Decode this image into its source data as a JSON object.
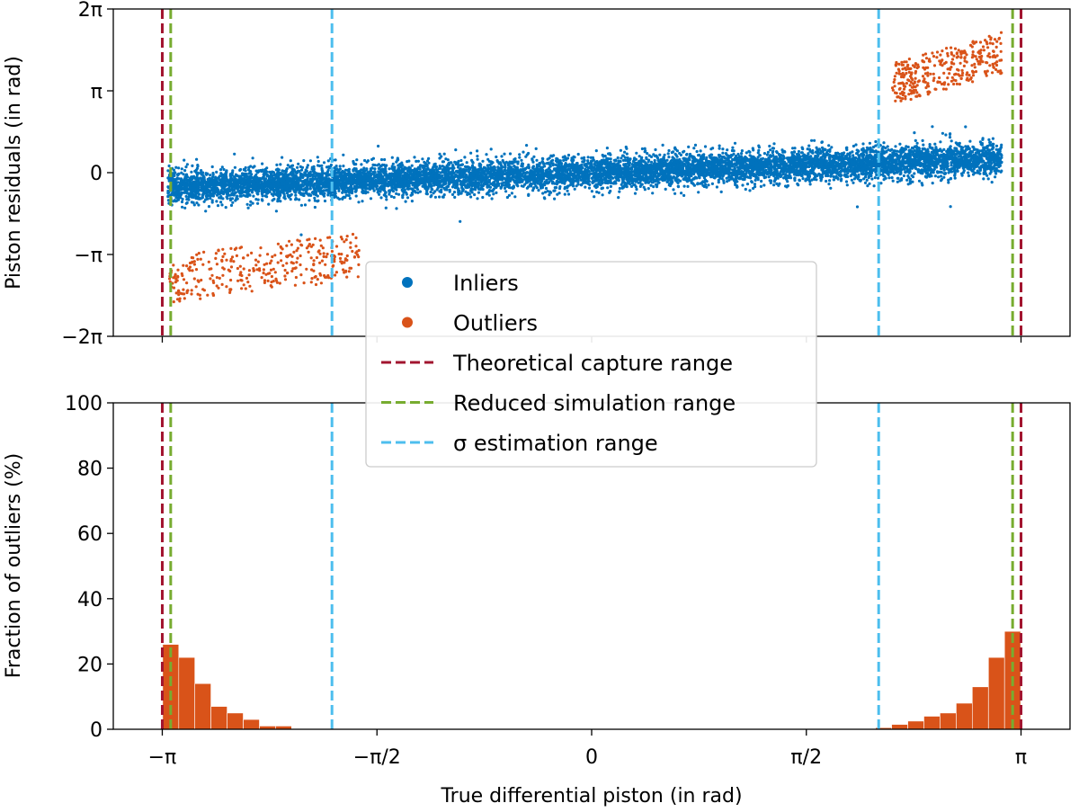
{
  "colors": {
    "inliers": "#0072bd",
    "outliers": "#d95319",
    "theoretical": "#a2142f",
    "reduced": "#77ac30",
    "sigma": "#4dbeee"
  },
  "chart_data": [
    {
      "type": "scatter",
      "ylabel": "Piston residuals (in rad)",
      "xlim": [
        -3.5,
        3.5
      ],
      "ylim": [
        -6.2832,
        6.2832
      ],
      "yticks": [
        {
          "value": 6.2832,
          "label": "2π"
        },
        {
          "value": 3.1416,
          "label": "π"
        },
        {
          "value": 0,
          "label": "0"
        },
        {
          "value": -3.1416,
          "label": "−π"
        },
        {
          "value": -6.2832,
          "label": "−2π"
        }
      ],
      "series": [
        {
          "name": "Inliers",
          "x_range": [
            -3.1,
            3.0
          ],
          "center_line": {
            "at_x_min": -0.55,
            "at_x_max": 0.55
          },
          "approx_spread": 0.3,
          "approx_count": 30000
        },
        {
          "name": "Outliers",
          "clusters": [
            {
              "x_range": [
                -3.1,
                -1.7
              ],
              "y_range": [
                -5.3,
                -2.5
              ]
            },
            {
              "x_range": [
                2.2,
                3.0
              ],
              "y_range": [
                2.6,
                5.4
              ]
            }
          ],
          "approx_count": 700
        }
      ],
      "vlines": [
        {
          "x": -3.1416,
          "series": "Theoretical capture range"
        },
        {
          "x": 3.1416,
          "series": "Theoretical capture range"
        },
        {
          "x": -3.08,
          "series": "Reduced simulation range"
        },
        {
          "x": 3.08,
          "series": "Reduced simulation range"
        },
        {
          "x": -1.9,
          "series": "σ estimation range"
        },
        {
          "x": 2.1,
          "series": "σ estimation range"
        }
      ]
    },
    {
      "type": "bar",
      "xlabel": "True differential piston (in rad)",
      "ylabel": "Fraction of outliers (%)",
      "xlim": [
        -3.5,
        3.5
      ],
      "ylim": [
        0,
        100
      ],
      "xticks": [
        {
          "value": -3.1416,
          "label": "−π"
        },
        {
          "value": -1.5708,
          "label": "−π/2"
        },
        {
          "value": 0,
          "label": "0"
        },
        {
          "value": 1.5708,
          "label": "π/2"
        },
        {
          "value": 3.1416,
          "label": "π"
        }
      ],
      "yticks": [
        0,
        20,
        40,
        60,
        80,
        100
      ],
      "bin_width": 0.118,
      "bins": [
        {
          "x": -3.08,
          "value": 26
        },
        {
          "x": -2.962,
          "value": 22
        },
        {
          "x": -2.844,
          "value": 14
        },
        {
          "x": -2.726,
          "value": 7
        },
        {
          "x": -2.608,
          "value": 5
        },
        {
          "x": -2.49,
          "value": 3
        },
        {
          "x": -2.372,
          "value": 1
        },
        {
          "x": -2.254,
          "value": 1
        },
        {
          "x": 2.136,
          "value": 0.5
        },
        {
          "x": 2.254,
          "value": 1.5
        },
        {
          "x": 2.372,
          "value": 2.5
        },
        {
          "x": 2.49,
          "value": 4
        },
        {
          "x": 2.608,
          "value": 5
        },
        {
          "x": 2.726,
          "value": 8
        },
        {
          "x": 2.844,
          "value": 13
        },
        {
          "x": 2.962,
          "value": 22
        },
        {
          "x": 3.08,
          "value": 30
        }
      ]
    }
  ],
  "legend": {
    "placement": "center",
    "items": [
      {
        "label": "Inliers",
        "kind": "marker",
        "color_key": "inliers"
      },
      {
        "label": "Outliers",
        "kind": "marker",
        "color_key": "outliers"
      },
      {
        "label": "Theoretical capture range",
        "kind": "dashed",
        "color_key": "theoretical"
      },
      {
        "label": "Reduced simulation range",
        "kind": "dashed",
        "color_key": "reduced"
      },
      {
        "label": "σ estimation range",
        "kind": "dashed",
        "color_key": "sigma"
      }
    ]
  }
}
